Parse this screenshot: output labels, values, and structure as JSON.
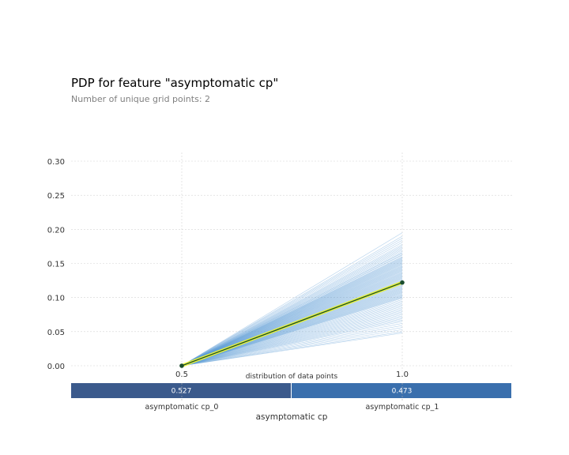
{
  "title": "PDP for feature \"asymptomatic cp\"",
  "subtitle": "Number of unique grid points: 2",
  "chart_data": {
    "type": "line",
    "x": [
      0.5,
      1.0
    ],
    "x_tick_labels": [
      "0.5",
      "1.0"
    ],
    "ylim": [
      -0.01,
      0.315
    ],
    "y_ticks": [
      "0.00",
      "0.05",
      "0.10",
      "0.15",
      "0.20",
      "0.25",
      "0.30"
    ],
    "grid": true,
    "pdp_line": {
      "values": [
        0.0,
        0.122
      ],
      "color": "#1a4d2e",
      "highlight_color": "#e8f33a"
    },
    "ice_lines": {
      "color": "#5b9bd5",
      "start": 0.0,
      "end_values": [
        0.195,
        0.19,
        0.187,
        0.184,
        0.181,
        0.178,
        0.176,
        0.174,
        0.172,
        0.17,
        0.168,
        0.166,
        0.165,
        0.163,
        0.162,
        0.16,
        0.159,
        0.158,
        0.157,
        0.156,
        0.155,
        0.154,
        0.153,
        0.152,
        0.151,
        0.15,
        0.149,
        0.148,
        0.147,
        0.146,
        0.145,
        0.144,
        0.143,
        0.142,
        0.141,
        0.14,
        0.139,
        0.138,
        0.137,
        0.136,
        0.135,
        0.134,
        0.133,
        0.132,
        0.131,
        0.13,
        0.129,
        0.128,
        0.127,
        0.126,
        0.125,
        0.124,
        0.123,
        0.122,
        0.121,
        0.12,
        0.119,
        0.118,
        0.117,
        0.116,
        0.115,
        0.114,
        0.113,
        0.112,
        0.111,
        0.11,
        0.109,
        0.108,
        0.107,
        0.106,
        0.105,
        0.104,
        0.103,
        0.102,
        0.101,
        0.1,
        0.099,
        0.097,
        0.095,
        0.093,
        0.091,
        0.089,
        0.087,
        0.085,
        0.083,
        0.081,
        0.079,
        0.077,
        0.075,
        0.073,
        0.071,
        0.069,
        0.067,
        0.065,
        0.062,
        0.059,
        0.056,
        0.053,
        0.05,
        0.048
      ]
    },
    "distribution": {
      "title": "distribution of data points",
      "xlabel": "asymptomatic cp",
      "bins": [
        {
          "label": "asymptomatic cp_0",
          "value": 0.527,
          "display": "0.527",
          "color": "#3b5a8c"
        },
        {
          "label": "asymptomatic cp_1",
          "value": 0.473,
          "display": "0.473",
          "color": "#3a6fad"
        }
      ]
    }
  }
}
